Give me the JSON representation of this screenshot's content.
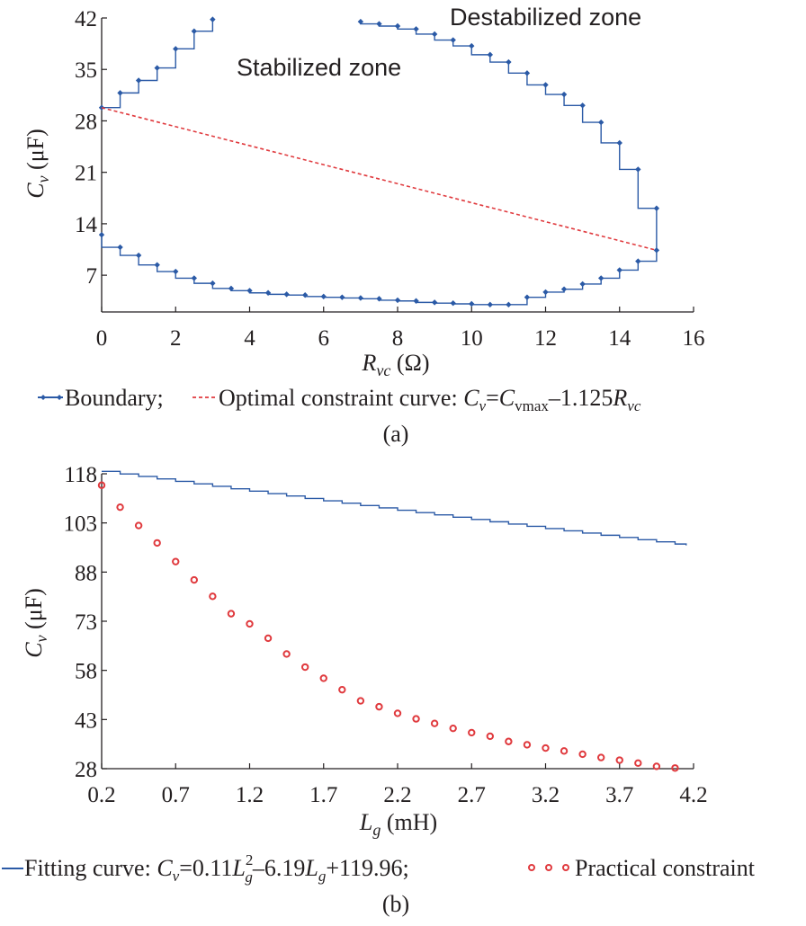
{
  "chart_data": [
    {
      "type": "line",
      "panel": "(a)",
      "xlabel": {
        "main": "R",
        "sub": "vc",
        "unit": " (Ω)"
      },
      "ylabel": {
        "main": "C",
        "sub": "v",
        "unit": " (μF)"
      },
      "xlim": [
        0,
        16
      ],
      "ylim": [
        2,
        42
      ],
      "xticks": [
        0,
        2,
        4,
        6,
        8,
        10,
        12,
        14,
        16
      ],
      "yticks": [
        7,
        14,
        21,
        28,
        35,
        42
      ],
      "annotations": [
        "Stabilized zone",
        "Destabilized zone"
      ],
      "legend": {
        "boundary": "Boundary;",
        "optimal_prefix": "Optimal constraint curve: ",
        "formula": {
          "c": "C",
          "v": "v",
          "eq": "=",
          "c2": "C",
          "vmax": "vmax",
          "minus": "–1.125",
          "r": "R",
          "vc": "vc"
        }
      },
      "series": [
        {
          "name": "Boundary",
          "color": "#2b5aa6",
          "segments": [
            [
              [
                0,
                29.8
              ],
              [
                0.5,
                31.8
              ],
              [
                1,
                33.5
              ],
              [
                1.5,
                35.2
              ],
              [
                2,
                37.8
              ],
              [
                2.5,
                40.2
              ],
              [
                3,
                41.8
              ]
            ],
            [
              [
                7,
                41.5
              ],
              [
                7.5,
                41.2
              ],
              [
                8,
                40.9
              ],
              [
                8.5,
                40.5
              ],
              [
                9,
                39.8
              ],
              [
                9.5,
                39.0
              ],
              [
                10,
                38.2
              ],
              [
                10.5,
                37.0
              ],
              [
                11,
                36.0
              ],
              [
                11.5,
                34.5
              ],
              [
                12,
                32.9
              ],
              [
                12.5,
                31.6
              ],
              [
                13,
                30.1
              ],
              [
                13.5,
                27.8
              ],
              [
                14,
                25.0
              ],
              [
                14.5,
                21.4
              ],
              [
                15,
                16.1
              ],
              [
                15,
                10.4
              ],
              [
                14.5,
                8.9
              ],
              [
                14,
                7.7
              ],
              [
                13.5,
                6.6
              ],
              [
                13,
                5.8
              ],
              [
                12.5,
                5.1
              ],
              [
                12,
                4.7
              ],
              [
                11.5,
                4.0
              ],
              [
                11,
                3.0
              ],
              [
                10.5,
                3.0
              ],
              [
                10,
                3.1
              ],
              [
                9.5,
                3.2
              ],
              [
                9,
                3.3
              ],
              [
                8.5,
                3.5
              ],
              [
                8,
                3.6
              ],
              [
                7.5,
                3.8
              ],
              [
                7,
                3.9
              ],
              [
                6.5,
                4.0
              ],
              [
                6,
                4.1
              ],
              [
                5.5,
                4.3
              ],
              [
                5,
                4.4
              ],
              [
                4.5,
                4.6
              ],
              [
                4,
                4.9
              ],
              [
                3.5,
                5.2
              ],
              [
                3,
                5.9
              ],
              [
                2.5,
                6.6
              ],
              [
                2,
                7.5
              ],
              [
                1.5,
                8.4
              ],
              [
                1,
                9.7
              ],
              [
                0.5,
                10.8
              ],
              [
                0,
                12.5
              ]
            ]
          ]
        },
        {
          "name": "Optimal constraint curve",
          "color": "#e03a3e",
          "points": [
            [
              0,
              29.8
            ],
            [
              15,
              10.4
            ]
          ]
        }
      ]
    },
    {
      "type": "line",
      "panel": "(b)",
      "xlabel": {
        "main": "L",
        "sub": "g",
        "unit": " (mH)"
      },
      "ylabel": {
        "main": "C",
        "sub": "v",
        "unit": " (μF)"
      },
      "xlim": [
        0.2,
        4.2
      ],
      "ylim": [
        28,
        118
      ],
      "xticks": [
        "0.2",
        "0.7",
        "1.2",
        "1.7",
        "2.2",
        "2.7",
        "3.2",
        "3.7",
        "4.2"
      ],
      "yticks": [
        28,
        43,
        58,
        73,
        88,
        103,
        118
      ],
      "legend": {
        "fit_prefix": "Fitting curve: ",
        "formula": {
          "c": "C",
          "v": "v",
          "eq": "=0.11",
          "l1": "L",
          "g1": "g",
          "sq": "2",
          "mid": "–6.19",
          "l2": "L",
          "g2": "g",
          "tail": "+119.96;"
        },
        "practical": "Practical constraint"
      },
      "series": [
        {
          "name": "Fitting curve",
          "color": "#2b5aa6",
          "function": {
            "a": 0.11,
            "b": -6.19,
            "c": 119.96
          },
          "x": [
            0.2,
            0.325,
            0.45,
            0.575,
            0.7,
            0.825,
            0.95,
            1.075,
            1.2,
            1.325,
            1.45,
            1.575,
            1.7,
            1.825,
            1.95,
            2.075,
            2.2,
            2.325,
            2.45,
            2.575,
            2.7,
            2.825,
            2.95,
            3.075,
            3.2,
            3.325,
            3.45,
            3.575,
            3.7,
            3.825,
            3.95,
            4.075,
            4.15
          ]
        },
        {
          "name": "Practical constraint",
          "color": "#e03a3e",
          "x": [
            0.2,
            0.325,
            0.45,
            0.575,
            0.7,
            0.825,
            0.95,
            1.075,
            1.2,
            1.325,
            1.45,
            1.575,
            1.7,
            1.825,
            1.95,
            2.075,
            2.2,
            2.325,
            2.45,
            2.575,
            2.7,
            2.825,
            2.95,
            3.075,
            3.2,
            3.325,
            3.45,
            3.575,
            3.7,
            3.825,
            3.95,
            4.075
          ],
          "y": [
            114.5,
            107.8,
            102.2,
            96.9,
            91.2,
            85.6,
            80.6,
            75.3,
            72.2,
            67.8,
            63.0,
            59.0,
            55.6,
            52.1,
            48.7,
            46.9,
            44.9,
            43.2,
            41.8,
            40.3,
            39.0,
            37.9,
            36.3,
            35.3,
            34.3,
            33.4,
            32.4,
            31.4,
            30.6,
            29.7,
            28.7,
            28.2
          ]
        }
      ]
    }
  ]
}
